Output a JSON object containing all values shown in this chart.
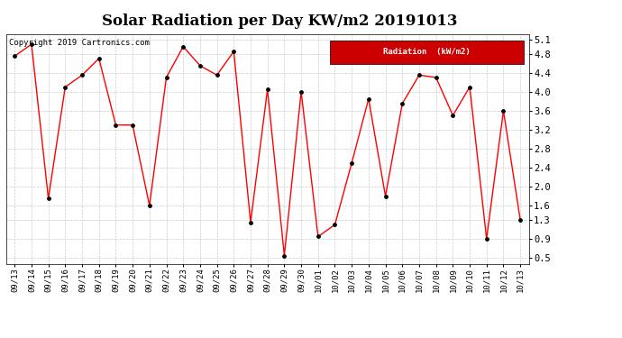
{
  "title": "Solar Radiation per Day KW/m2 20191013",
  "copyright": "Copyright 2019 Cartronics.com",
  "legend_label": "Radiation  (kW/m2)",
  "dates": [
    "09/13",
    "09/14",
    "09/15",
    "09/16",
    "09/17",
    "09/18",
    "09/19",
    "09/20",
    "09/21",
    "09/22",
    "09/23",
    "09/24",
    "09/25",
    "09/26",
    "09/27",
    "09/28",
    "09/29",
    "09/30",
    "10/01",
    "10/02",
    "10/03",
    "10/04",
    "10/05",
    "10/06",
    "10/07",
    "10/08",
    "10/09",
    "10/10",
    "10/11",
    "10/12",
    "10/13"
  ],
  "values": [
    4.75,
    5.0,
    1.75,
    4.1,
    4.35,
    4.7,
    3.3,
    3.3,
    1.6,
    4.3,
    4.95,
    4.55,
    4.35,
    4.85,
    1.25,
    4.05,
    0.55,
    4.0,
    0.95,
    1.2,
    2.5,
    3.85,
    1.8,
    3.75,
    4.35,
    4.3,
    3.5,
    4.1,
    0.9,
    3.6,
    1.3
  ],
  "line_color": "#ff0000",
  "marker_color": "#000000",
  "background_color": "#ffffff",
  "grid_color": "#cccccc",
  "ylim": [
    0.38,
    5.22
  ],
  "yticks": [
    0.5,
    0.9,
    1.3,
    1.6,
    2.0,
    2.4,
    2.8,
    3.2,
    3.6,
    4.0,
    4.4,
    4.8,
    5.1
  ],
  "legend_bg": "#cc0000",
  "legend_text_color": "#ffffff",
  "title_fontsize": 12,
  "tick_fontsize": 6.5,
  "copyright_fontsize": 6.5
}
